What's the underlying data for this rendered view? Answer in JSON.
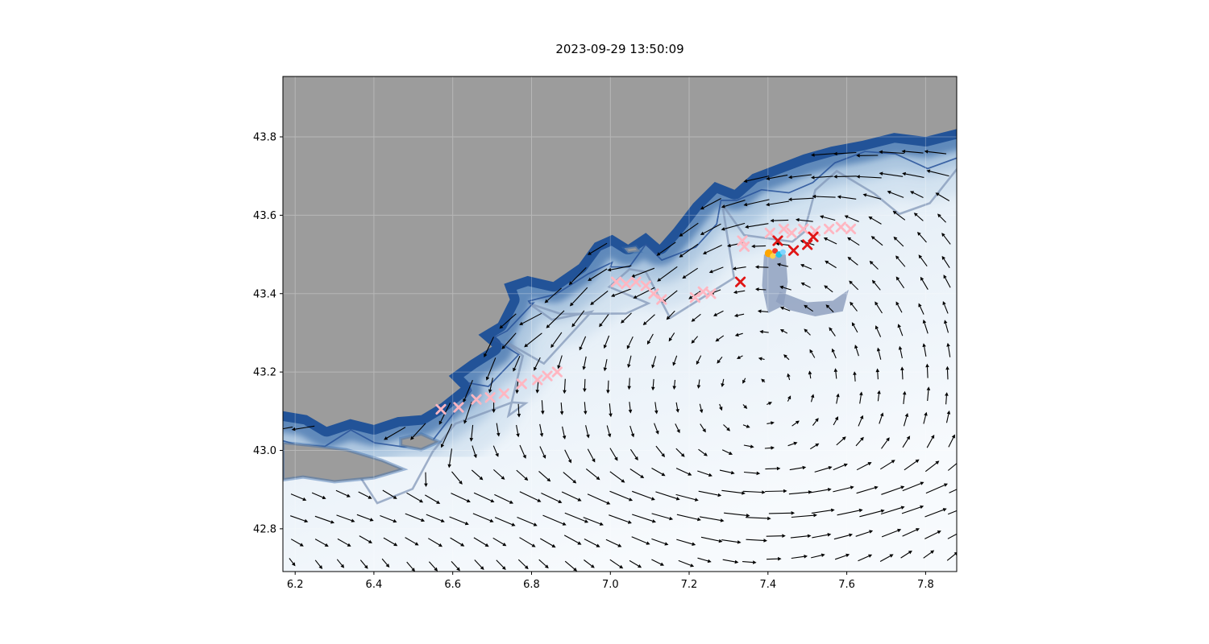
{
  "chart_data": {
    "type": "quiver_map",
    "title": "2023-09-29 13:50:09",
    "xlabel": "",
    "ylabel": "",
    "xlim": [
      6.169,
      7.879
    ],
    "ylim": [
      42.691,
      43.954
    ],
    "xticks": [
      6.2,
      6.4,
      6.6,
      6.8,
      7.0,
      7.2,
      7.4,
      7.6,
      7.8
    ],
    "yticks": [
      42.8,
      43.0,
      43.2,
      43.4,
      43.6,
      43.8
    ],
    "legend": false,
    "colors": {
      "land": "#9c9c9c",
      "coast_deep": "#1d4e95",
      "slope_mid": "#3f70ab",
      "slope_outer": "#7fa5cc",
      "shelf_pale": "#aac7e1",
      "ocean_far": "#f7fafd",
      "contour_navy": "#2a549b",
      "contour_slate": "#8094b6",
      "slate_patch": "#8c9dbd",
      "arrow": "#000000",
      "marker_pink": "#ffb6c1",
      "marker_red": "#e01515",
      "frame": "#000000",
      "gridline": "#ffffff",
      "tick_text": "#000000"
    },
    "coastline": [
      [
        6.169,
        43.1
      ],
      [
        6.23,
        43.09
      ],
      [
        6.28,
        43.06
      ],
      [
        6.34,
        43.08
      ],
      [
        6.4,
        43.065
      ],
      [
        6.46,
        43.085
      ],
      [
        6.52,
        43.09
      ],
      [
        6.57,
        43.12
      ],
      [
        6.62,
        43.16
      ],
      [
        6.59,
        43.19
      ],
      [
        6.645,
        43.23
      ],
      [
        6.7,
        43.265
      ],
      [
        6.665,
        43.295
      ],
      [
        6.715,
        43.325
      ],
      [
        6.745,
        43.385
      ],
      [
        6.73,
        43.425
      ],
      [
        6.79,
        43.445
      ],
      [
        6.855,
        43.43
      ],
      [
        6.92,
        43.475
      ],
      [
        6.96,
        43.53
      ],
      [
        7.005,
        43.55
      ],
      [
        7.045,
        43.525
      ],
      [
        7.09,
        43.555
      ],
      [
        7.125,
        43.525
      ],
      [
        7.16,
        43.565
      ],
      [
        7.21,
        43.63
      ],
      [
        7.265,
        43.685
      ],
      [
        7.315,
        43.665
      ],
      [
        7.36,
        43.705
      ],
      [
        7.425,
        43.73
      ],
      [
        7.49,
        43.755
      ],
      [
        7.56,
        43.775
      ],
      [
        7.64,
        43.79
      ],
      [
        7.72,
        43.81
      ],
      [
        7.8,
        43.8
      ],
      [
        7.879,
        43.82
      ]
    ],
    "islands": [
      [
        [
          6.169,
          43.02
        ],
        [
          6.25,
          43.012
        ],
        [
          6.33,
          43.002
        ],
        [
          6.42,
          42.975
        ],
        [
          6.475,
          42.952
        ],
        [
          6.4,
          42.93
        ],
        [
          6.3,
          42.92
        ],
        [
          6.22,
          42.932
        ],
        [
          6.169,
          42.925
        ]
      ],
      [
        [
          6.468,
          43.03
        ],
        [
          6.52,
          43.042
        ],
        [
          6.565,
          43.022
        ],
        [
          6.52,
          43.002
        ],
        [
          6.468,
          43.012
        ]
      ],
      [
        [
          7.035,
          43.516
        ],
        [
          7.065,
          43.52
        ],
        [
          7.075,
          43.508
        ],
        [
          7.045,
          43.504
        ]
      ]
    ],
    "coast_profile": [
      [
        6.169,
        43.1
      ],
      [
        6.4,
        43.07
      ],
      [
        6.55,
        43.1
      ],
      [
        6.65,
        43.24
      ],
      [
        6.74,
        43.42
      ],
      [
        6.86,
        43.43
      ],
      [
        7.0,
        43.55
      ],
      [
        7.13,
        43.54
      ],
      [
        7.3,
        43.69
      ],
      [
        7.5,
        43.76
      ],
      [
        7.7,
        43.81
      ],
      [
        7.879,
        43.83
      ]
    ],
    "slate_patches": [
      [
        [
          7.39,
          43.5
        ],
        [
          7.445,
          43.5
        ],
        [
          7.45,
          43.43
        ],
        [
          7.44,
          43.37
        ],
        [
          7.4,
          43.35
        ],
        [
          7.385,
          43.42
        ]
      ],
      [
        [
          7.43,
          43.405
        ],
        [
          7.5,
          43.378
        ],
        [
          7.565,
          43.382
        ],
        [
          7.605,
          43.41
        ],
        [
          7.59,
          43.355
        ],
        [
          7.52,
          43.342
        ],
        [
          7.455,
          43.358
        ],
        [
          7.42,
          43.38
        ]
      ]
    ],
    "contours": {
      "navy_offset": 0.055,
      "navy_wiggle": 0.5,
      "slate_offset": 0.135,
      "slate_wiggle": 0.55
    },
    "markers": {
      "pink_x": [
        [
          6.57,
          43.105
        ],
        [
          6.615,
          43.11
        ],
        [
          6.66,
          43.13
        ],
        [
          6.695,
          43.135
        ],
        [
          6.73,
          43.145
        ],
        [
          6.775,
          43.17
        ],
        [
          6.815,
          43.18
        ],
        [
          6.84,
          43.19
        ],
        [
          6.865,
          43.2
        ],
        [
          7.015,
          43.43
        ],
        [
          7.04,
          43.425
        ],
        [
          7.065,
          43.43
        ],
        [
          7.09,
          43.42
        ],
        [
          7.11,
          43.4
        ],
        [
          7.13,
          43.385
        ],
        [
          7.215,
          43.39
        ],
        [
          7.235,
          43.405
        ],
        [
          7.255,
          43.4
        ],
        [
          7.335,
          43.535
        ],
        [
          7.34,
          43.52
        ],
        [
          7.405,
          43.555
        ],
        [
          7.44,
          43.565
        ],
        [
          7.46,
          43.555
        ],
        [
          7.49,
          43.565
        ],
        [
          7.52,
          43.56
        ],
        [
          7.555,
          43.565
        ],
        [
          7.585,
          43.57
        ],
        [
          7.61,
          43.565
        ]
      ],
      "red_x": [
        [
          7.33,
          43.43
        ],
        [
          7.425,
          43.535
        ],
        [
          7.465,
          43.51
        ],
        [
          7.5,
          43.525
        ],
        [
          7.515,
          43.545
        ]
      ],
      "dots": [
        {
          "x": 7.402,
          "y": 43.503,
          "color": "#ffa600",
          "r": 5
        },
        {
          "x": 7.412,
          "y": 43.496,
          "color": "#ffd24d",
          "r": 3.5
        },
        {
          "x": 7.418,
          "y": 43.509,
          "color": "#f03b2e",
          "r": 3.5
        },
        {
          "x": 7.428,
          "y": 43.5,
          "color": "#22c4e8",
          "r": 4
        },
        {
          "x": 7.438,
          "y": 43.506,
          "color": "#7fd4ff",
          "r": 3.5
        }
      ]
    },
    "quiver": {
      "x_start": 6.19,
      "x_end": 7.87,
      "y_start": 42.72,
      "y_end": 43.92,
      "step": 0.0575,
      "gyre": {
        "cx": 7.38,
        "cy": 43.16,
        "strength": 1.6,
        "radius": 0.45,
        "background": 0.22
      },
      "coastal_jet": {
        "strength": 1.25,
        "offset": 0.055,
        "width": 0.1
      },
      "bottom_drift": {
        "strength": 0.85,
        "lat": 42.86,
        "width": 0.1
      },
      "arrow_scale": 20,
      "arrow_min": 6,
      "arrow_max": 30
    }
  }
}
